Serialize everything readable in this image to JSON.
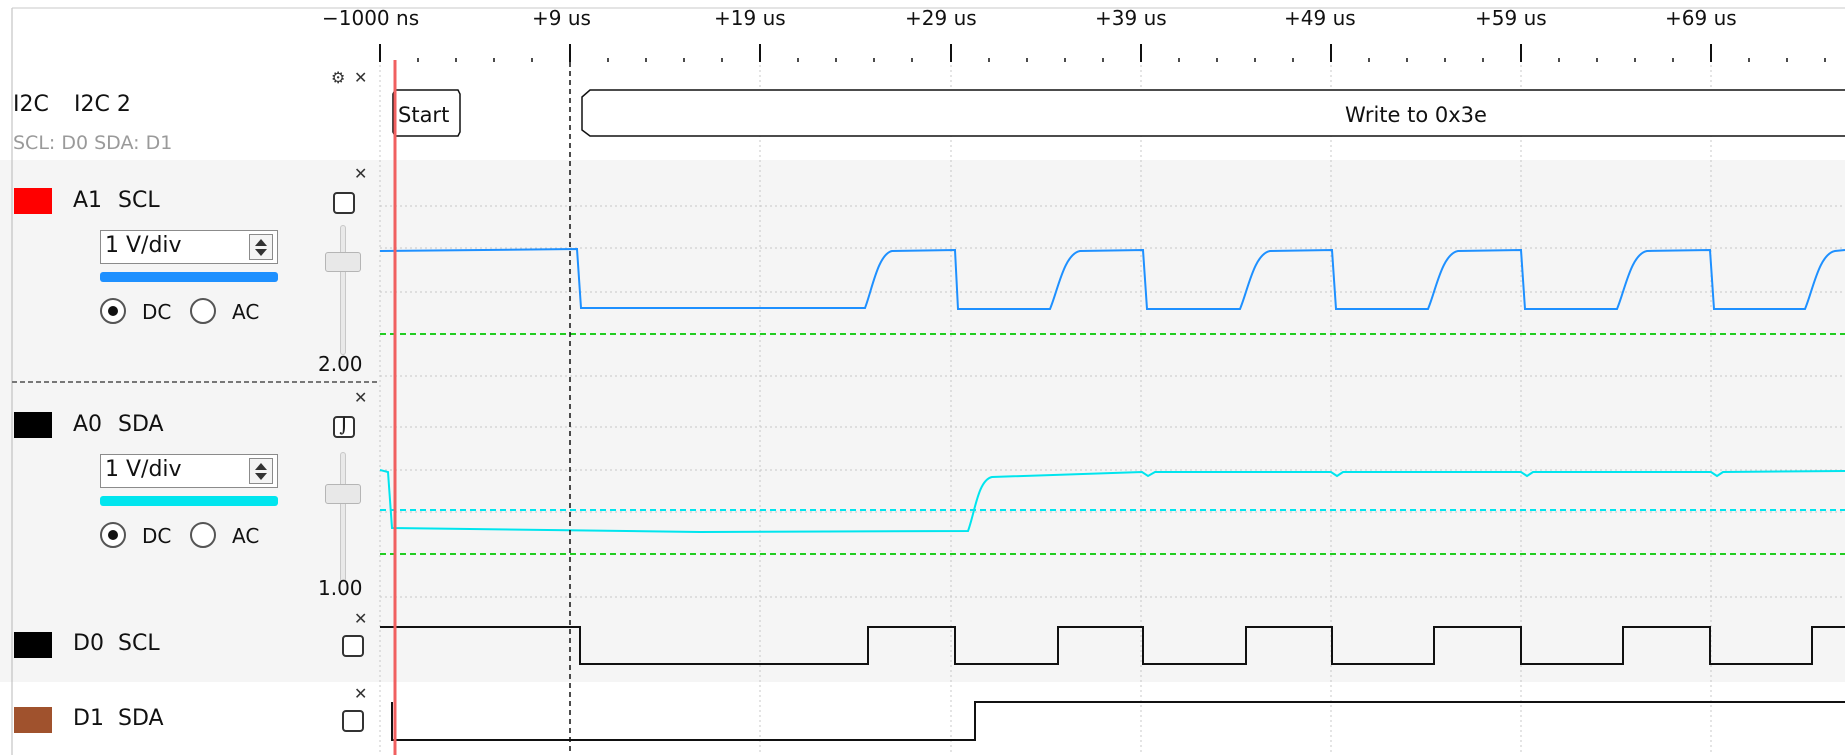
{
  "timeline": {
    "ticks": [
      "−1000 ns",
      "+9 us",
      "+19 us",
      "+29 us",
      "+39 us",
      "+49 us",
      "+59 us",
      "+69 us"
    ]
  },
  "decoder": {
    "name": "I2C",
    "title": "I2C 2",
    "pins": "SCL: D0 SDA: D1",
    "annotations": [
      "Start",
      "Write to 0x3e"
    ]
  },
  "analog_channels": [
    {
      "id": "A1",
      "name": "SCL",
      "color": "#ff0000",
      "wave_color": "#1e90ff",
      "scale": "1 V/div",
      "coupling": [
        "DC",
        "AC"
      ],
      "selected_coupling": "DC",
      "offset": "2.00"
    },
    {
      "id": "A0",
      "name": "SDA",
      "color": "#000000",
      "wave_color": "#00e5ee",
      "scale": "1 V/div",
      "coupling": [
        "DC",
        "AC"
      ],
      "selected_coupling": "DC",
      "offset": "1.00"
    }
  ],
  "digital_channels": [
    {
      "id": "D0",
      "name": "SCL",
      "color": "#000000"
    },
    {
      "id": "D1",
      "name": "SDA",
      "color": "#a0522d"
    }
  ],
  "icons": {
    "settings": "gear-icon",
    "close": "close-icon",
    "trigger": "trigger-edge-icon"
  },
  "colors": {
    "cursor": "#f06060",
    "threshold": "#22cc22",
    "grid": "#c8c8c8"
  }
}
